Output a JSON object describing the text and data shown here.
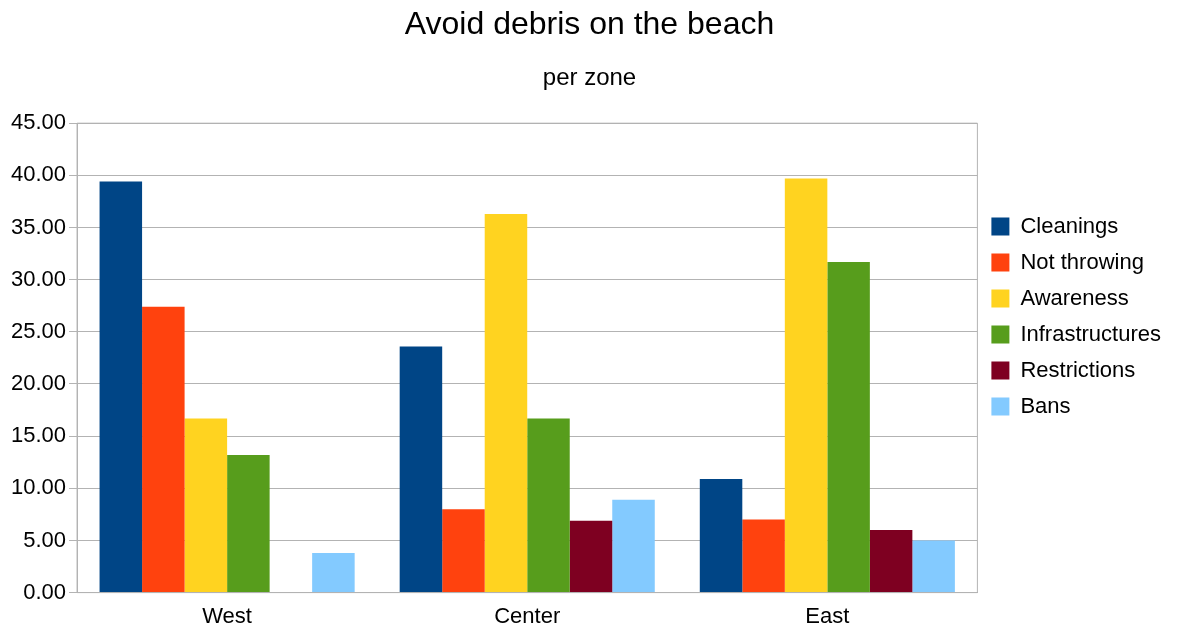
{
  "chart_data": {
    "type": "bar",
    "title": "Avoid debris on the beach",
    "subtitle": "per zone",
    "categories": [
      "West",
      "Center",
      "East"
    ],
    "series": [
      {
        "name": "Cleanings",
        "color": "#004586",
        "values": [
          39.4,
          23.6,
          10.9
        ]
      },
      {
        "name": "Not throwing",
        "color": "#ff420e",
        "values": [
          27.4,
          8.0,
          7.0
        ]
      },
      {
        "name": "Awareness",
        "color": "#ffd320",
        "values": [
          16.7,
          36.3,
          39.7
        ]
      },
      {
        "name": "Infrastructures",
        "color": "#579d1c",
        "values": [
          13.2,
          16.7,
          31.7
        ]
      },
      {
        "name": "Restrictions",
        "color": "#7e0021",
        "values": [
          0,
          6.9,
          6.0
        ]
      },
      {
        "name": "Bans",
        "color": "#83caff",
        "values": [
          3.8,
          8.9,
          5.0
        ]
      }
    ],
    "ylim": [
      0,
      45
    ],
    "yticks": [
      {
        "value": 0,
        "label": "0.00"
      },
      {
        "value": 5,
        "label": "5.00"
      },
      {
        "value": 10,
        "label": "10.00"
      },
      {
        "value": 15,
        "label": "15.00"
      },
      {
        "value": 20,
        "label": "20.00"
      },
      {
        "value": 25,
        "label": "25.00"
      },
      {
        "value": 30,
        "label": "30.00"
      },
      {
        "value": 35,
        "label": "35.00"
      },
      {
        "value": 40,
        "label": "40.00"
      },
      {
        "value": 45,
        "label": "45.00"
      }
    ],
    "grid": "y",
    "legend": "right"
  }
}
